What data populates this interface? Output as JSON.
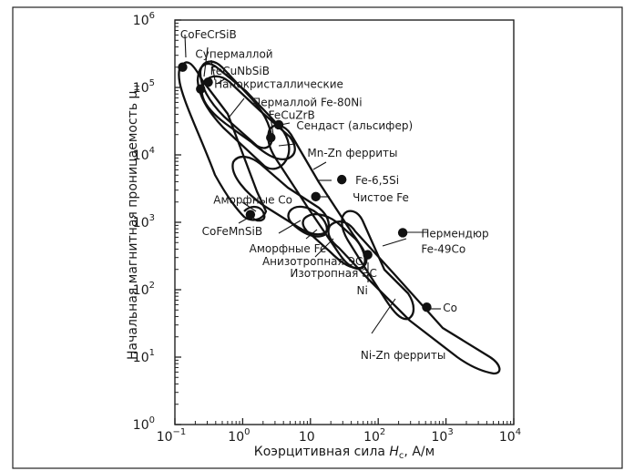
{
  "chart_data": {
    "type": "scatter",
    "title": "",
    "xlabel_parts": [
      "Коэрцитивная сила ",
      "H",
      "c",
      ", А/м"
    ],
    "ylabel_parts": [
      "Начальная магнитная проницаемость μ",
      "н"
    ],
    "x_scale": "log",
    "y_scale": "log",
    "xlim": [
      0.1,
      10000
    ],
    "ylim": [
      1,
      1000000
    ],
    "grid": false,
    "legend": "none",
    "x_ticks": [
      {
        "base": "10",
        "exp": "−1",
        "value": 0.1
      },
      {
        "base": "10",
        "exp": "0",
        "value": 1
      },
      {
        "base": "10",
        "exp": "",
        "value": 10
      },
      {
        "base": "10",
        "exp": "2",
        "value": 100
      },
      {
        "base": "10",
        "exp": "3",
        "value": 1000
      },
      {
        "base": "10",
        "exp": "4",
        "value": 10000
      }
    ],
    "y_ticks": [
      {
        "base": "10",
        "exp": "0",
        "value": 1
      },
      {
        "base": "10",
        "exp": "1",
        "value": 10
      },
      {
        "base": "10",
        "exp": "2",
        "value": 100
      },
      {
        "base": "10",
        "exp": "3",
        "value": 1000
      },
      {
        "base": "10",
        "exp": "4",
        "value": 10000
      },
      {
        "base": "10",
        "exp": "5",
        "value": 100000
      },
      {
        "base": "10",
        "exp": "6",
        "value": 1000000
      }
    ],
    "points": [
      {
        "x": 0.13,
        "y": 200000
      },
      {
        "x": 0.24,
        "y": 95000
      },
      {
        "x": 0.31,
        "y": 120000
      },
      {
        "x": 2.6,
        "y": 18000
      },
      {
        "x": 3.4,
        "y": 28000
      },
      {
        "x": 29,
        "y": 4300
      },
      {
        "x": 12,
        "y": 2400
      },
      {
        "x": 1.3,
        "y": 1300
      },
      {
        "x": 230,
        "y": 700
      },
      {
        "x": 70,
        "y": 330
      },
      {
        "x": 520,
        "y": 55
      }
    ],
    "labels": [
      {
        "text": "CoFeCrSiB",
        "x": 0.12,
        "y": 630000
      },
      {
        "text": "Супермаллой",
        "x": 0.2,
        "y": 320000
      },
      {
        "text": "FeCuNbSiB",
        "x": 0.33,
        "y": 180000
      },
      {
        "text": "Нанокристаллические",
        "x": 0.38,
        "y": 115000
      },
      {
        "text": "Пермаллой Fe-80Ni",
        "x": 1.4,
        "y": 62000
      },
      {
        "text": "FeCuZrB",
        "x": 2.4,
        "y": 40000
      },
      {
        "text": "Сендаст (альсифер)",
        "x": 6.2,
        "y": 28000
      },
      {
        "text": "Mn-Zn ферриты",
        "x": 9.0,
        "y": 11000
      },
      {
        "text": "Fe-6,5Si",
        "x": 46,
        "y": 4300
      },
      {
        "text": "Чистое Fe",
        "x": 42,
        "y": 2400
      },
      {
        "text": "Аморфные Co",
        "x": 0.37,
        "y": 2200
      },
      {
        "text": "CoFeMnSiB",
        "x": 0.25,
        "y": 750
      },
      {
        "text": "Аморфные Fe",
        "x": 1.25,
        "y": 420
      },
      {
        "text": "Анизотропная ЭС",
        "x": 1.95,
        "y": 270
      },
      {
        "text": "Изотропная ЭС",
        "x": 5.0,
        "y": 180
      },
      {
        "text": "Пермендюр",
        "x": 430,
        "y": 700
      },
      {
        "text": "Fe-49Co",
        "x": 430,
        "y": 410
      },
      {
        "text": "Ni",
        "x": 48,
        "y": 100
      },
      {
        "text": "Co",
        "x": 900,
        "y": 55
      },
      {
        "text": "Ni-Zn ферриты",
        "x": 55,
        "y": 11
      }
    ]
  }
}
